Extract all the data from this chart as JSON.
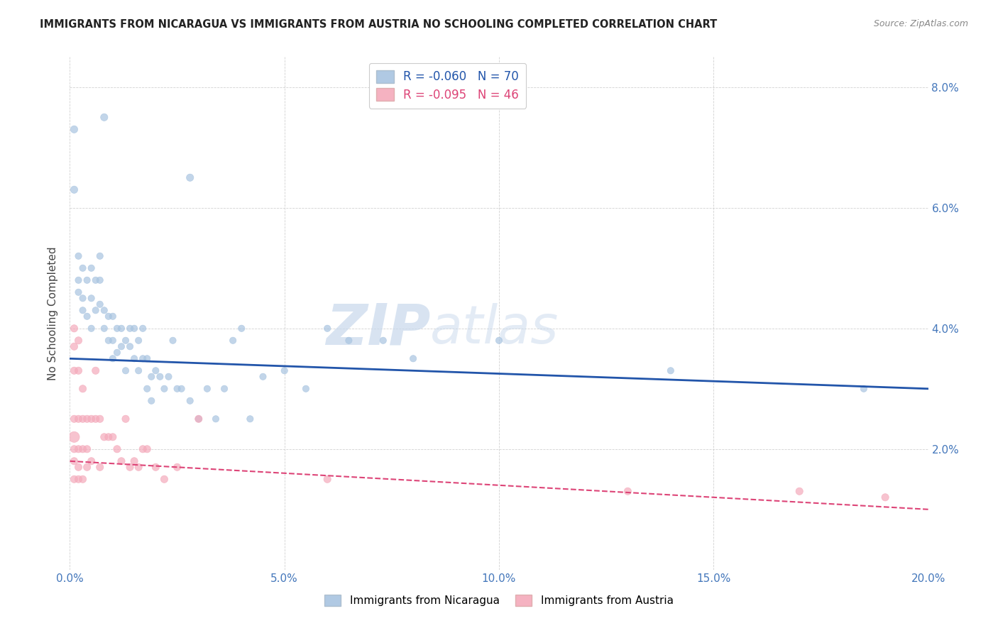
{
  "title": "IMMIGRANTS FROM NICARAGUA VS IMMIGRANTS FROM AUSTRIA NO SCHOOLING COMPLETED CORRELATION CHART",
  "source": "Source: ZipAtlas.com",
  "ylabel": "No Schooling Completed",
  "xlim": [
    0.0,
    0.2
  ],
  "ylim": [
    0.0,
    0.085
  ],
  "xticks": [
    0.0,
    0.05,
    0.1,
    0.15,
    0.2
  ],
  "xtick_labels": [
    "0.0%",
    "5.0%",
    "10.0%",
    "15.0%",
    "20.0%"
  ],
  "yticks": [
    0.0,
    0.02,
    0.04,
    0.06,
    0.08
  ],
  "ytick_labels": [
    "",
    "2.0%",
    "4.0%",
    "6.0%",
    "8.0%"
  ],
  "legend1_r": "-0.060",
  "legend1_n": "70",
  "legend2_r": "-0.095",
  "legend2_n": "46",
  "blue_color": "#A8C4E0",
  "pink_color": "#F4AABB",
  "blue_line_color": "#2255AA",
  "pink_line_color": "#DD4477",
  "watermark_zip": "ZIP",
  "watermark_atlas": "atlas",
  "blue_x": [
    0.008,
    0.001,
    0.028,
    0.001,
    0.002,
    0.002,
    0.002,
    0.003,
    0.003,
    0.003,
    0.004,
    0.004,
    0.005,
    0.005,
    0.005,
    0.006,
    0.006,
    0.007,
    0.007,
    0.007,
    0.008,
    0.008,
    0.009,
    0.009,
    0.01,
    0.01,
    0.01,
    0.011,
    0.011,
    0.012,
    0.012,
    0.013,
    0.013,
    0.014,
    0.014,
    0.015,
    0.015,
    0.016,
    0.016,
    0.017,
    0.017,
    0.018,
    0.018,
    0.019,
    0.019,
    0.02,
    0.021,
    0.022,
    0.023,
    0.024,
    0.025,
    0.026,
    0.028,
    0.03,
    0.032,
    0.034,
    0.036,
    0.038,
    0.04,
    0.042,
    0.045,
    0.05,
    0.055,
    0.06,
    0.065,
    0.073,
    0.08,
    0.1,
    0.14,
    0.185
  ],
  "blue_y": [
    0.075,
    0.073,
    0.065,
    0.063,
    0.052,
    0.048,
    0.046,
    0.05,
    0.045,
    0.043,
    0.048,
    0.042,
    0.05,
    0.045,
    0.04,
    0.048,
    0.043,
    0.052,
    0.048,
    0.044,
    0.043,
    0.04,
    0.042,
    0.038,
    0.042,
    0.038,
    0.035,
    0.04,
    0.036,
    0.04,
    0.037,
    0.038,
    0.033,
    0.04,
    0.037,
    0.04,
    0.035,
    0.038,
    0.033,
    0.04,
    0.035,
    0.035,
    0.03,
    0.032,
    0.028,
    0.033,
    0.032,
    0.03,
    0.032,
    0.038,
    0.03,
    0.03,
    0.028,
    0.025,
    0.03,
    0.025,
    0.03,
    0.038,
    0.04,
    0.025,
    0.032,
    0.033,
    0.03,
    0.04,
    0.038,
    0.038,
    0.035,
    0.038,
    0.033,
    0.03
  ],
  "blue_s": [
    55,
    55,
    55,
    55,
    45,
    45,
    45,
    45,
    45,
    45,
    45,
    45,
    45,
    45,
    45,
    45,
    45,
    45,
    45,
    45,
    45,
    45,
    45,
    45,
    45,
    45,
    45,
    45,
    45,
    45,
    45,
    45,
    45,
    45,
    45,
    45,
    45,
    45,
    45,
    45,
    45,
    45,
    45,
    45,
    45,
    45,
    45,
    45,
    45,
    45,
    45,
    45,
    45,
    45,
    45,
    45,
    45,
    45,
    45,
    45,
    45,
    45,
    45,
    45,
    45,
    45,
    45,
    45,
    45,
    45
  ],
  "pink_x": [
    0.001,
    0.001,
    0.001,
    0.001,
    0.001,
    0.001,
    0.001,
    0.001,
    0.002,
    0.002,
    0.002,
    0.002,
    0.002,
    0.002,
    0.003,
    0.003,
    0.003,
    0.003,
    0.004,
    0.004,
    0.004,
    0.005,
    0.005,
    0.006,
    0.006,
    0.007,
    0.007,
    0.008,
    0.009,
    0.01,
    0.011,
    0.012,
    0.013,
    0.014,
    0.015,
    0.016,
    0.017,
    0.018,
    0.02,
    0.022,
    0.025,
    0.03,
    0.06,
    0.13,
    0.17,
    0.19
  ],
  "pink_y": [
    0.04,
    0.037,
    0.033,
    0.025,
    0.022,
    0.02,
    0.018,
    0.015,
    0.038,
    0.033,
    0.025,
    0.02,
    0.017,
    0.015,
    0.03,
    0.025,
    0.02,
    0.015,
    0.025,
    0.02,
    0.017,
    0.025,
    0.018,
    0.033,
    0.025,
    0.025,
    0.017,
    0.022,
    0.022,
    0.022,
    0.02,
    0.018,
    0.025,
    0.017,
    0.018,
    0.017,
    0.02,
    0.02,
    0.017,
    0.015,
    0.017,
    0.025,
    0.015,
    0.013,
    0.013,
    0.012
  ],
  "pink_s": [
    55,
    55,
    55,
    55,
    120,
    55,
    55,
    55,
    55,
    55,
    55,
    55,
    55,
    55,
    55,
    55,
    55,
    55,
    55,
    55,
    55,
    55,
    55,
    55,
    55,
    55,
    55,
    55,
    55,
    55,
    55,
    55,
    55,
    55,
    55,
    55,
    55,
    55,
    55,
    55,
    55,
    55,
    55,
    55,
    55,
    55
  ],
  "blue_trend_x": [
    0.0,
    0.2
  ],
  "blue_trend_y": [
    0.035,
    0.03
  ],
  "pink_trend_x": [
    0.0,
    0.2
  ],
  "pink_trend_y": [
    0.018,
    0.01
  ]
}
